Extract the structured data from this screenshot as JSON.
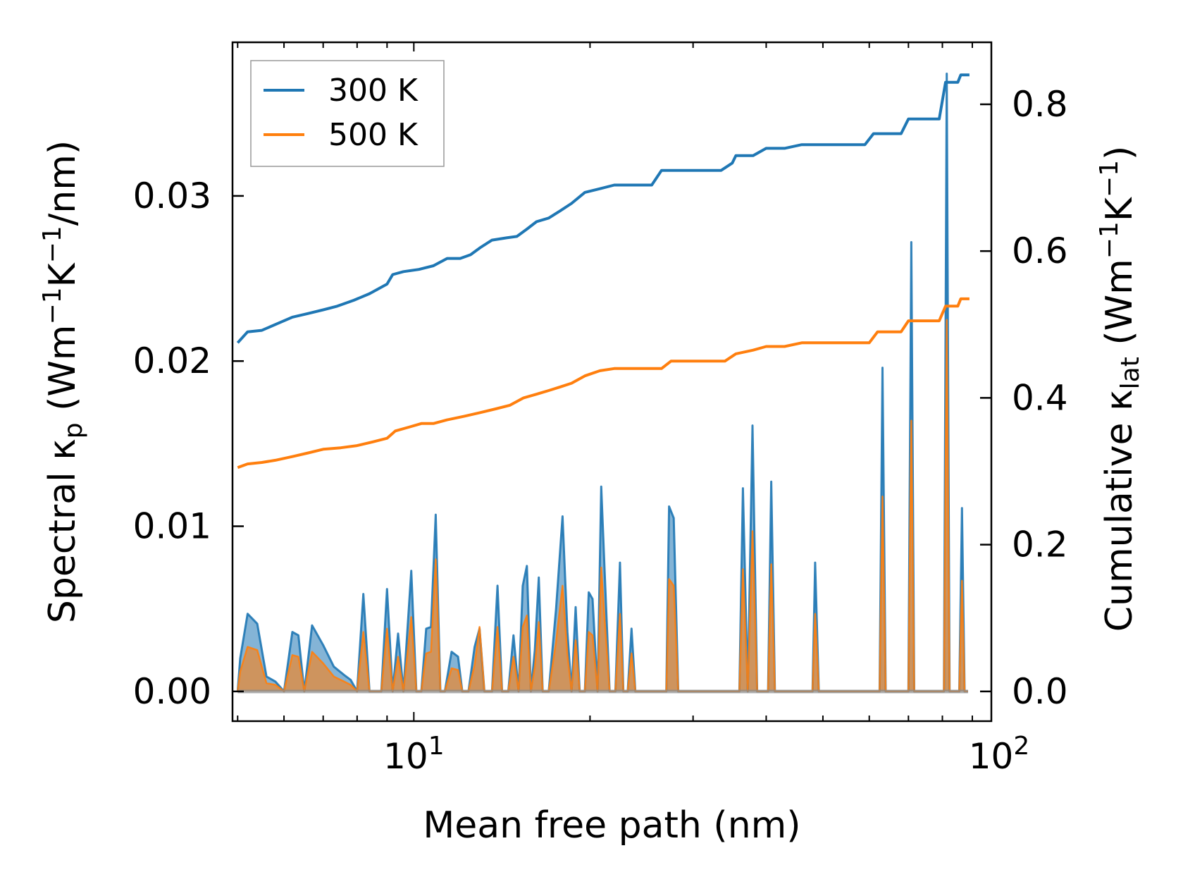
{
  "chart_data": {
    "type": "line",
    "x_scale": "log",
    "xlim": [
      4.9,
      97
    ],
    "ylim_left": [
      -0.0018,
      0.0393
    ],
    "ylim_right": [
      -0.0405,
      0.8845
    ],
    "xlabel": "Mean free path (nm)",
    "ylabel_left": {
      "text": "Spectral κ",
      "sub": "p",
      "units_pre": " (Wm",
      "sup1": "−1",
      "mid": "K",
      "sup2": "−1",
      "units_post": "/nm)"
    },
    "ylabel_right": {
      "text": "Cumulative κ",
      "sub": "lat",
      "units_pre": " (Wm",
      "sup1": "−1",
      "mid": "K",
      "sup2": "−1",
      "units_post": ")"
    },
    "x_ticks": [
      {
        "value": 10,
        "base": "10",
        "exp": "1"
      },
      {
        "value": 100,
        "base": "10",
        "exp": "2"
      }
    ],
    "y_left_ticks": [
      {
        "value": 0.0,
        "label": "0.00"
      },
      {
        "value": 0.01,
        "label": "0.01"
      },
      {
        "value": 0.02,
        "label": "0.02"
      },
      {
        "value": 0.03,
        "label": "0.03"
      }
    ],
    "y_right_ticks": [
      {
        "value": 0.0,
        "label": "0.0"
      },
      {
        "value": 0.2,
        "label": "0.2"
      },
      {
        "value": 0.4,
        "label": "0.4"
      },
      {
        "value": 0.6,
        "label": "0.6"
      },
      {
        "value": 0.8,
        "label": "0.8"
      }
    ],
    "legend": {
      "position": "top-left",
      "entries": [
        {
          "label": "300 K",
          "color": "#1f77b4"
        },
        {
          "label": "500 K",
          "color": "#ff7f0e"
        }
      ]
    },
    "series": [
      {
        "name": "300 K",
        "color": "#1f77b4",
        "cumulative": [
          [
            5.0,
            0.475
          ],
          [
            5.2,
            0.49
          ],
          [
            5.5,
            0.492
          ],
          [
            5.8,
            0.5
          ],
          [
            6.2,
            0.51
          ],
          [
            6.6,
            0.515
          ],
          [
            7.0,
            0.52
          ],
          [
            7.4,
            0.525
          ],
          [
            7.9,
            0.533
          ],
          [
            8.4,
            0.542
          ],
          [
            9.0,
            0.555
          ],
          [
            9.2,
            0.568
          ],
          [
            9.6,
            0.572
          ],
          [
            10.2,
            0.575
          ],
          [
            10.8,
            0.58
          ],
          [
            11.4,
            0.59
          ],
          [
            12.0,
            0.59
          ],
          [
            12.5,
            0.595
          ],
          [
            13.0,
            0.605
          ],
          [
            13.6,
            0.615
          ],
          [
            14.4,
            0.618
          ],
          [
            15.0,
            0.62
          ],
          [
            15.6,
            0.63
          ],
          [
            16.2,
            0.64
          ],
          [
            17.0,
            0.645
          ],
          [
            17.8,
            0.655
          ],
          [
            18.6,
            0.665
          ],
          [
            19.6,
            0.68
          ],
          [
            20.8,
            0.685
          ],
          [
            22.0,
            0.69
          ],
          [
            25.5,
            0.69
          ],
          [
            26.5,
            0.71
          ],
          [
            27.5,
            0.71
          ],
          [
            33.5,
            0.71
          ],
          [
            35.0,
            0.72
          ],
          [
            35.5,
            0.73
          ],
          [
            38.0,
            0.73
          ],
          [
            40.0,
            0.74
          ],
          [
            43.0,
            0.74
          ],
          [
            46.0,
            0.745
          ],
          [
            59.0,
            0.745
          ],
          [
            61.0,
            0.76
          ],
          [
            68.0,
            0.76
          ],
          [
            70.0,
            0.78
          ],
          [
            79.0,
            0.78
          ],
          [
            81.0,
            0.83
          ],
          [
            85.0,
            0.83
          ],
          [
            86.0,
            0.84
          ],
          [
            89.0,
            0.84
          ]
        ],
        "spectral": [
          [
            5.0,
            0.0
          ],
          [
            5.05,
            0.002
          ],
          [
            5.2,
            0.0047
          ],
          [
            5.4,
            0.0041
          ],
          [
            5.6,
            0.0009
          ],
          [
            5.8,
            0.0006
          ],
          [
            6.0,
            0.0
          ],
          [
            6.2,
            0.0036
          ],
          [
            6.35,
            0.0034
          ],
          [
            6.5,
            0.0
          ],
          [
            6.7,
            0.004
          ],
          [
            7.0,
            0.0028
          ],
          [
            7.3,
            0.0015
          ],
          [
            7.6,
            0.001
          ],
          [
            7.8,
            0.0007
          ],
          [
            8.0,
            0.0
          ],
          [
            8.2,
            0.0059
          ],
          [
            8.4,
            0.0
          ],
          [
            8.8,
            0.0
          ],
          [
            9.0,
            0.0062
          ],
          [
            9.2,
            0.0
          ],
          [
            9.4,
            0.0035
          ],
          [
            9.6,
            0.0
          ],
          [
            9.9,
            0.0073
          ],
          [
            10.1,
            0.0
          ],
          [
            10.3,
            0.0
          ],
          [
            10.5,
            0.0038
          ],
          [
            10.7,
            0.0039
          ],
          [
            10.9,
            0.0107
          ],
          [
            11.1,
            0.0
          ],
          [
            11.3,
            0.0
          ],
          [
            11.6,
            0.0024
          ],
          [
            11.9,
            0.0021
          ],
          [
            12.1,
            0.0
          ],
          [
            12.4,
            0.0
          ],
          [
            12.7,
            0.0027
          ],
          [
            12.95,
            0.0038
          ],
          [
            13.2,
            0.0
          ],
          [
            13.6,
            0.0
          ],
          [
            13.9,
            0.0064
          ],
          [
            14.15,
            0.0
          ],
          [
            14.5,
            0.0
          ],
          [
            14.8,
            0.0034
          ],
          [
            15.1,
            0.0
          ],
          [
            15.35,
            0.0064
          ],
          [
            15.6,
            0.0076
          ],
          [
            15.85,
            0.0
          ],
          [
            16.1,
            0.0025
          ],
          [
            16.35,
            0.0069
          ],
          [
            16.6,
            0.0
          ],
          [
            17.0,
            0.0
          ],
          [
            17.5,
            0.005
          ],
          [
            17.95,
            0.0106
          ],
          [
            18.3,
            0.0036
          ],
          [
            18.6,
            0.0
          ],
          [
            18.9,
            0.0051
          ],
          [
            19.2,
            0.0
          ],
          [
            19.6,
            0.0
          ],
          [
            19.9,
            0.006
          ],
          [
            20.2,
            0.0056
          ],
          [
            20.6,
            0.0
          ],
          [
            20.9,
            0.0124
          ],
          [
            21.2,
            0.007
          ],
          [
            21.6,
            0.0
          ],
          [
            22.1,
            0.0
          ],
          [
            22.5,
            0.0078
          ],
          [
            22.8,
            0.0
          ],
          [
            23.2,
            0.0
          ],
          [
            23.55,
            0.0038
          ],
          [
            23.9,
            0.0
          ],
          [
            27.0,
            0.0
          ],
          [
            27.3,
            0.0112
          ],
          [
            27.8,
            0.0105
          ],
          [
            28.3,
            0.0
          ],
          [
            36.0,
            0.0
          ],
          [
            36.5,
            0.0123
          ],
          [
            37.2,
            0.0
          ],
          [
            37.9,
            0.0161
          ],
          [
            38.6,
            0.0
          ],
          [
            40.3,
            0.0
          ],
          [
            40.8,
            0.0127
          ],
          [
            41.4,
            0.0
          ],
          [
            48.0,
            0.0
          ],
          [
            48.5,
            0.0078
          ],
          [
            49.2,
            0.0
          ],
          [
            62.5,
            0.0
          ],
          [
            63.2,
            0.0196
          ],
          [
            64.0,
            0.0
          ],
          [
            70.0,
            0.0
          ],
          [
            70.8,
            0.0272
          ],
          [
            71.6,
            0.0
          ],
          [
            80.5,
            0.0
          ],
          [
            81.4,
            0.0374
          ],
          [
            82.3,
            0.0
          ],
          [
            85.5,
            0.0
          ],
          [
            86.4,
            0.0111
          ],
          [
            87.3,
            0.0
          ],
          [
            88.5,
            0.0
          ]
        ]
      },
      {
        "name": "500 K",
        "color": "#ff7f0e",
        "cumulative": [
          [
            5.0,
            0.305
          ],
          [
            5.2,
            0.31
          ],
          [
            5.5,
            0.312
          ],
          [
            5.8,
            0.315
          ],
          [
            6.2,
            0.32
          ],
          [
            6.6,
            0.325
          ],
          [
            7.0,
            0.33
          ],
          [
            7.5,
            0.332
          ],
          [
            8.0,
            0.335
          ],
          [
            8.5,
            0.34
          ],
          [
            9.0,
            0.345
          ],
          [
            9.3,
            0.355
          ],
          [
            9.8,
            0.36
          ],
          [
            10.3,
            0.365
          ],
          [
            10.8,
            0.365
          ],
          [
            11.4,
            0.37
          ],
          [
            12.2,
            0.375
          ],
          [
            13.0,
            0.38
          ],
          [
            13.8,
            0.385
          ],
          [
            14.6,
            0.39
          ],
          [
            15.4,
            0.4
          ],
          [
            16.2,
            0.405
          ],
          [
            17.0,
            0.41
          ],
          [
            17.8,
            0.415
          ],
          [
            18.6,
            0.42
          ],
          [
            19.6,
            0.43
          ],
          [
            20.8,
            0.437
          ],
          [
            22.0,
            0.44
          ],
          [
            26.5,
            0.44
          ],
          [
            27.5,
            0.45
          ],
          [
            28.5,
            0.45
          ],
          [
            34.0,
            0.45
          ],
          [
            35.5,
            0.46
          ],
          [
            38.0,
            0.465
          ],
          [
            40.0,
            0.47
          ],
          [
            43.0,
            0.47
          ],
          [
            46.0,
            0.475
          ],
          [
            60.0,
            0.475
          ],
          [
            62.0,
            0.49
          ],
          [
            68.0,
            0.49
          ],
          [
            70.0,
            0.505
          ],
          [
            79.0,
            0.505
          ],
          [
            81.0,
            0.525
          ],
          [
            85.0,
            0.525
          ],
          [
            86.0,
            0.535
          ],
          [
            89.0,
            0.535
          ]
        ],
        "spectral": [
          [
            5.0,
            0.0
          ],
          [
            5.05,
            0.0012
          ],
          [
            5.2,
            0.0027
          ],
          [
            5.4,
            0.0025
          ],
          [
            5.6,
            0.0005
          ],
          [
            5.8,
            0.0004
          ],
          [
            6.0,
            0.0
          ],
          [
            6.2,
            0.0022
          ],
          [
            6.35,
            0.0021
          ],
          [
            6.5,
            0.0
          ],
          [
            6.7,
            0.0024
          ],
          [
            7.0,
            0.0017
          ],
          [
            7.3,
            0.0009
          ],
          [
            7.6,
            0.0006
          ],
          [
            7.8,
            0.0004
          ],
          [
            8.0,
            0.0
          ],
          [
            8.2,
            0.0036
          ],
          [
            8.4,
            0.0
          ],
          [
            8.8,
            0.0
          ],
          [
            9.0,
            0.0038
          ],
          [
            9.2,
            0.0
          ],
          [
            9.4,
            0.0021
          ],
          [
            9.6,
            0.0
          ],
          [
            9.9,
            0.0045
          ],
          [
            10.1,
            0.0
          ],
          [
            10.3,
            0.0
          ],
          [
            10.5,
            0.0023
          ],
          [
            10.7,
            0.0024
          ],
          [
            10.9,
            0.008
          ],
          [
            11.1,
            0.0
          ],
          [
            11.3,
            0.0
          ],
          [
            11.6,
            0.0014
          ],
          [
            11.9,
            0.0013
          ],
          [
            12.1,
            0.0
          ],
          [
            12.4,
            0.0
          ],
          [
            12.7,
            0.0016
          ],
          [
            12.95,
            0.0039
          ],
          [
            13.2,
            0.0
          ],
          [
            13.6,
            0.0
          ],
          [
            13.9,
            0.0039
          ],
          [
            14.15,
            0.0
          ],
          [
            14.5,
            0.0
          ],
          [
            14.8,
            0.0021
          ],
          [
            15.1,
            0.0
          ],
          [
            15.35,
            0.0039
          ],
          [
            15.6,
            0.0046
          ],
          [
            15.85,
            0.0
          ],
          [
            16.1,
            0.0015
          ],
          [
            16.35,
            0.0042
          ],
          [
            16.6,
            0.0
          ],
          [
            17.0,
            0.0
          ],
          [
            17.5,
            0.003
          ],
          [
            17.95,
            0.0064
          ],
          [
            18.3,
            0.0022
          ],
          [
            18.6,
            0.0
          ],
          [
            18.9,
            0.0031
          ],
          [
            19.2,
            0.0
          ],
          [
            19.6,
            0.0
          ],
          [
            19.9,
            0.0036
          ],
          [
            20.2,
            0.0034
          ],
          [
            20.6,
            0.0
          ],
          [
            20.9,
            0.0075
          ],
          [
            21.2,
            0.0042
          ],
          [
            21.6,
            0.0
          ],
          [
            22.1,
            0.0
          ],
          [
            22.5,
            0.0047
          ],
          [
            22.8,
            0.0
          ],
          [
            23.2,
            0.0
          ],
          [
            23.55,
            0.0023
          ],
          [
            23.9,
            0.0
          ],
          [
            27.0,
            0.0
          ],
          [
            27.3,
            0.0068
          ],
          [
            27.8,
            0.0064
          ],
          [
            28.3,
            0.0
          ],
          [
            36.0,
            0.0
          ],
          [
            36.5,
            0.0074
          ],
          [
            37.2,
            0.0
          ],
          [
            37.9,
            0.0097
          ],
          [
            38.6,
            0.0
          ],
          [
            40.3,
            0.0
          ],
          [
            40.8,
            0.0077
          ],
          [
            41.4,
            0.0
          ],
          [
            48.0,
            0.0
          ],
          [
            48.5,
            0.0047
          ],
          [
            49.2,
            0.0
          ],
          [
            62.5,
            0.0
          ],
          [
            63.2,
            0.0118
          ],
          [
            64.0,
            0.0
          ],
          [
            70.0,
            0.0
          ],
          [
            70.8,
            0.0164
          ],
          [
            71.6,
            0.0
          ],
          [
            80.5,
            0.0
          ],
          [
            81.4,
            0.0225
          ],
          [
            82.3,
            0.0
          ],
          [
            85.5,
            0.0
          ],
          [
            86.4,
            0.0067
          ],
          [
            87.3,
            0.0
          ],
          [
            88.5,
            0.0
          ]
        ]
      }
    ]
  }
}
